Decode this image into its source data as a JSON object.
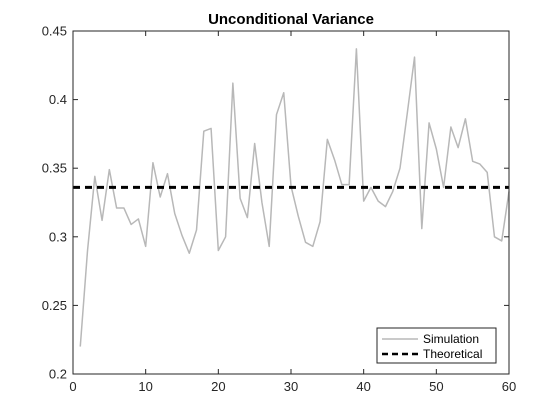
{
  "chart_data": {
    "type": "line",
    "title": "Unconditional Variance",
    "xlabel": "",
    "ylabel": "",
    "xlim": [
      0,
      60
    ],
    "ylim": [
      0.2,
      0.45
    ],
    "x_ticks": [
      "0",
      "10",
      "20",
      "30",
      "40",
      "50",
      "60"
    ],
    "y_ticks": [
      "0.2",
      "0.25",
      "0.3",
      "0.35",
      "0.4",
      "0.45"
    ],
    "grid": false,
    "legend_position": "bottom-right",
    "series": [
      {
        "name": "Simulation",
        "style": "solid",
        "color": "#b8b8b8",
        "x": [
          1,
          2,
          3,
          4,
          5,
          6,
          7,
          8,
          9,
          10,
          11,
          12,
          13,
          14,
          15,
          16,
          17,
          18,
          19,
          20,
          21,
          22,
          23,
          24,
          25,
          26,
          27,
          28,
          29,
          30,
          31,
          32,
          33,
          34,
          35,
          36,
          37,
          38,
          39,
          40,
          41,
          42,
          43,
          44,
          45,
          46,
          47,
          48,
          49,
          50,
          51,
          52,
          53,
          54,
          55,
          56,
          57,
          58,
          59,
          60
        ],
        "values": [
          0.22,
          0.29,
          0.344,
          0.312,
          0.349,
          0.321,
          0.321,
          0.309,
          0.313,
          0.293,
          0.354,
          0.329,
          0.346,
          0.317,
          0.301,
          0.288,
          0.305,
          0.377,
          0.379,
          0.29,
          0.3,
          0.412,
          0.328,
          0.314,
          0.368,
          0.325,
          0.293,
          0.389,
          0.405,
          0.337,
          0.315,
          0.296,
          0.293,
          0.311,
          0.371,
          0.356,
          0.338,
          0.338,
          0.437,
          0.326,
          0.336,
          0.326,
          0.322,
          0.333,
          0.35,
          0.39,
          0.431,
          0.306,
          0.383,
          0.364,
          0.336,
          0.38,
          0.365,
          0.386,
          0.355,
          0.353,
          0.347,
          0.3,
          0.297,
          0.333
        ]
      },
      {
        "name": "Theoretical",
        "style": "dashed",
        "color": "#000000",
        "x": [
          0,
          60
        ],
        "values": [
          0.336,
          0.336
        ]
      }
    ]
  }
}
